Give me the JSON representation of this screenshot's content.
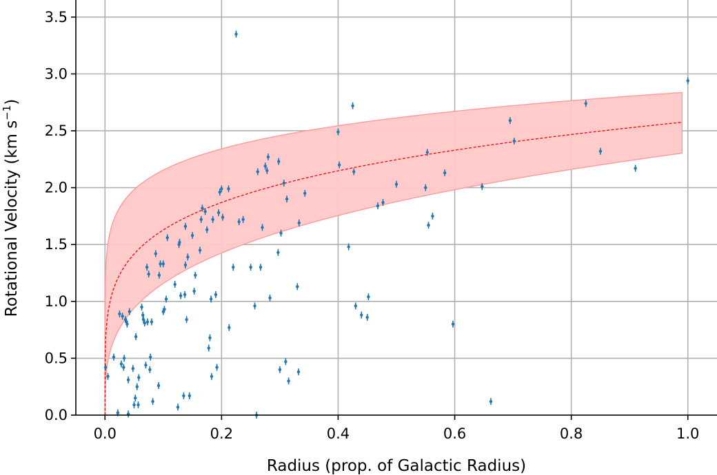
{
  "chart_data": {
    "type": "scatter",
    "title": "",
    "xlabel": "Radius (prop. of Galactic Radius)",
    "ylabel_text": "Rotational Velocity (km s",
    "ylabel_sup": "−1",
    "ylabel_close": ")",
    "xlim": [
      -0.05,
      1.05
    ],
    "ylim": [
      0.0,
      3.65
    ],
    "xticks": [
      0.0,
      0.2,
      0.4,
      0.6,
      0.8,
      1.0
    ],
    "xtick_labels": [
      "0.0",
      "0.2",
      "0.4",
      "0.6",
      "0.8",
      "1.0"
    ],
    "yticks": [
      0.0,
      0.5,
      1.0,
      1.5,
      2.0,
      2.5,
      3.0,
      3.5
    ],
    "ytick_labels": [
      "0.0",
      "0.5",
      "1.0",
      "1.5",
      "2.0",
      "2.5",
      "3.0",
      "3.5"
    ],
    "grid": true,
    "colors": {
      "points": "#1f77b4",
      "fit_line": "#ff0000",
      "band_fill": "#ffc8c8",
      "band_edge": "#ff9a9a",
      "grid": "#b0b0b0"
    },
    "series": [
      {
        "type": "scatter",
        "points": [
          [
            0.001,
            0.42
          ],
          [
            0.005,
            0.34
          ],
          [
            0.015,
            0.51
          ],
          [
            0.022,
            0.02
          ],
          [
            0.025,
            0.89
          ],
          [
            0.028,
            0.45
          ],
          [
            0.03,
            0.87
          ],
          [
            0.032,
            0.42
          ],
          [
            0.033,
            0.5
          ],
          [
            0.035,
            0.84
          ],
          [
            0.037,
            0.82
          ],
          [
            0.038,
            0.8
          ],
          [
            0.04,
            0.31
          ],
          [
            0.04,
            0.01
          ],
          [
            0.042,
            0.91
          ],
          [
            0.048,
            0.41
          ],
          [
            0.05,
            0.09
          ],
          [
            0.052,
            0.15
          ],
          [
            0.053,
            0.69
          ],
          [
            0.055,
            0.25
          ],
          [
            0.057,
            0.09
          ],
          [
            0.058,
            0.33
          ],
          [
            0.063,
            0.95
          ],
          [
            0.065,
            0.88
          ],
          [
            0.066,
            0.84
          ],
          [
            0.068,
            0.81
          ],
          [
            0.07,
            0.44
          ],
          [
            0.072,
            1.3
          ],
          [
            0.073,
            0.82
          ],
          [
            0.075,
            1.24
          ],
          [
            0.077,
            0.4
          ],
          [
            0.078,
            0.51
          ],
          [
            0.08,
            0.82
          ],
          [
            0.082,
            0.12
          ],
          [
            0.087,
            1.42
          ],
          [
            0.092,
            0.26
          ],
          [
            0.093,
            1.23
          ],
          [
            0.095,
            1.33
          ],
          [
            0.1,
            0.91
          ],
          [
            0.1,
            1.33
          ],
          [
            0.102,
            0.93
          ],
          [
            0.105,
            1.02
          ],
          [
            0.107,
            1.56
          ],
          [
            0.12,
            1.15
          ],
          [
            0.125,
            0.07
          ],
          [
            0.127,
            1.5
          ],
          [
            0.128,
            1.52
          ],
          [
            0.13,
            1.05
          ],
          [
            0.135,
            0.17
          ],
          [
            0.137,
            1.06
          ],
          [
            0.138,
            1.66
          ],
          [
            0.138,
            1.32
          ],
          [
            0.14,
            0.84
          ],
          [
            0.142,
            1.39
          ],
          [
            0.145,
            0.17
          ],
          [
            0.15,
            1.58
          ],
          [
            0.153,
            1.09
          ],
          [
            0.155,
            1.23
          ],
          [
            0.163,
            1.45
          ],
          [
            0.165,
            1.72
          ],
          [
            0.167,
            1.82
          ],
          [
            0.172,
            1.79
          ],
          [
            0.175,
            1.63
          ],
          [
            0.178,
            0.59
          ],
          [
            0.18,
            0.68
          ],
          [
            0.182,
            1.02
          ],
          [
            0.183,
            0.34
          ],
          [
            0.185,
            1.72
          ],
          [
            0.19,
            1.06
          ],
          [
            0.192,
            0.42
          ],
          [
            0.195,
            1.78
          ],
          [
            0.197,
            1.96
          ],
          [
            0.2,
            1.99
          ],
          [
            0.202,
            1.74
          ],
          [
            0.212,
            1.99
          ],
          [
            0.213,
            0.77
          ],
          [
            0.22,
            1.3
          ],
          [
            0.225,
            3.35
          ],
          [
            0.23,
            1.7
          ],
          [
            0.237,
            1.72
          ],
          [
            0.25,
            1.3
          ],
          [
            0.257,
            0.96
          ],
          [
            0.26,
            0.0
          ],
          [
            0.262,
            2.14
          ],
          [
            0.267,
            1.3
          ],
          [
            0.27,
            1.65
          ],
          [
            0.275,
            2.19
          ],
          [
            0.278,
            2.15
          ],
          [
            0.28,
            2.27
          ],
          [
            0.283,
            1.03
          ],
          [
            0.297,
            1.43
          ],
          [
            0.298,
            2.23
          ],
          [
            0.3,
            0.4
          ],
          [
            0.302,
            1.6
          ],
          [
            0.307,
            2.04
          ],
          [
            0.31,
            0.47
          ],
          [
            0.312,
            1.9
          ],
          [
            0.315,
            0.3
          ],
          [
            0.33,
            1.13
          ],
          [
            0.332,
            0.38
          ],
          [
            0.333,
            1.69
          ],
          [
            0.343,
            1.95
          ],
          [
            0.4,
            2.49
          ],
          [
            0.402,
            2.2
          ],
          [
            0.418,
            1.48
          ],
          [
            0.425,
            2.72
          ],
          [
            0.427,
            2.14
          ],
          [
            0.43,
            0.96
          ],
          [
            0.44,
            0.88
          ],
          [
            0.45,
            0.86
          ],
          [
            0.452,
            1.04
          ],
          [
            0.468,
            1.84
          ],
          [
            0.477,
            1.87
          ],
          [
            0.5,
            2.03
          ],
          [
            0.55,
            2.0
          ],
          [
            0.553,
            2.31
          ],
          [
            0.555,
            1.67
          ],
          [
            0.562,
            1.75
          ],
          [
            0.583,
            2.13
          ],
          [
            0.597,
            0.8
          ],
          [
            0.647,
            2.01
          ],
          [
            0.662,
            0.12
          ],
          [
            0.695,
            2.59
          ],
          [
            0.702,
            2.41
          ],
          [
            0.825,
            2.74
          ],
          [
            0.85,
            2.32
          ],
          [
            0.91,
            2.17
          ],
          [
            1.0,
            2.94
          ]
        ]
      },
      {
        "type": "line",
        "style": "dashed",
        "model": "a * x^b",
        "a": 2.58,
        "b": 0.2
      },
      {
        "type": "band",
        "upper_model": "a * x^b",
        "upper_a": 2.84,
        "upper_b": 0.12,
        "lower_model": "a * x^b",
        "lower_a": 2.31,
        "lower_b": 0.3,
        "x_range": [
          0.0,
          0.99
        ]
      }
    ]
  }
}
